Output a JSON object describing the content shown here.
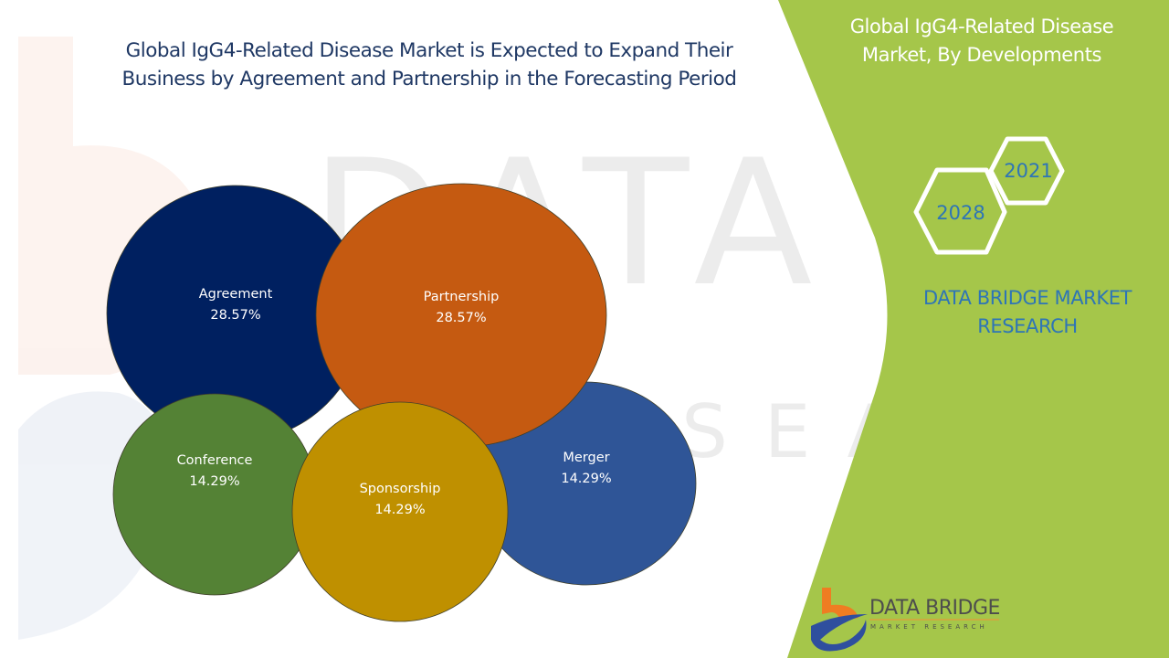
{
  "title": "Global IgG4-Related Disease Market is Expected to Expand Their Business by Agreement and Partnership in the Forecasting Period",
  "side_panel": {
    "title": "Global IgG4-Related Disease Market, By Developments",
    "years": [
      "2021",
      "2028"
    ],
    "brand_text": "DATA BRIDGE MARKET RESEARCH",
    "logo": {
      "name": "DATA BRIDGE",
      "tagline": "MARKET RESEARCH"
    }
  },
  "colors": {
    "panel_green": "#a5c64a",
    "title_navy": "#1f3864",
    "brand_blue": "#2e75b6"
  },
  "chart_data": {
    "type": "bubble",
    "title": "Global IgG4-Related Disease Market is Expected to Expand Their Business by Agreement and Partnership in the Forecasting Period",
    "unit": "%",
    "series": [
      {
        "name": "Agreement",
        "value": 28.57,
        "label": "28.57%",
        "color": "#002060"
      },
      {
        "name": "Partnership",
        "value": 28.57,
        "label": "28.57%",
        "color": "#c55a11"
      },
      {
        "name": "Merger",
        "value": 14.29,
        "label": "14.29%",
        "color": "#2f5597"
      },
      {
        "name": "Conference",
        "value": 14.29,
        "label": "14.29%",
        "color": "#548235"
      },
      {
        "name": "Sponsorship",
        "value": 14.29,
        "label": "14.29%",
        "color": "#bf9000"
      }
    ]
  }
}
